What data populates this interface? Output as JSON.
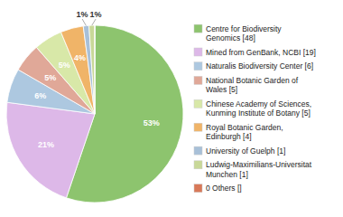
{
  "chart_data": {
    "type": "pie",
    "categories": [
      "Centre for Biodiversity\nGenomics [48]",
      "Mined from GenBank, NCBI [19]",
      "Naturalis Biodiversity Center [6]",
      "National Botanic Garden of\nWales [5]",
      "Chinese Academy of Sciences,\nKunming Institute of Botany [5]",
      "Royal Botanic Garden,\nEdinburgh [4]",
      "University of Guelph [1]",
      "Ludwig-Maximilians-Universitat\nMunchen [1]",
      "0 Others []"
    ],
    "values": [
      53,
      21,
      6,
      5,
      5,
      4,
      1,
      1,
      0
    ],
    "value_labels": [
      "53%",
      "21%",
      "6%",
      "5%",
      "5%",
      "4%",
      "1%",
      "1%",
      null
    ],
    "colors": [
      "#8dc46e",
      "#ddb8e8",
      "#adc8e0",
      "#e0a898",
      "#d8e8a8",
      "#f0b468",
      "#a8c0d8",
      "#c8d898",
      "#d87858"
    ],
    "legend": "right",
    "data_labels": true
  }
}
